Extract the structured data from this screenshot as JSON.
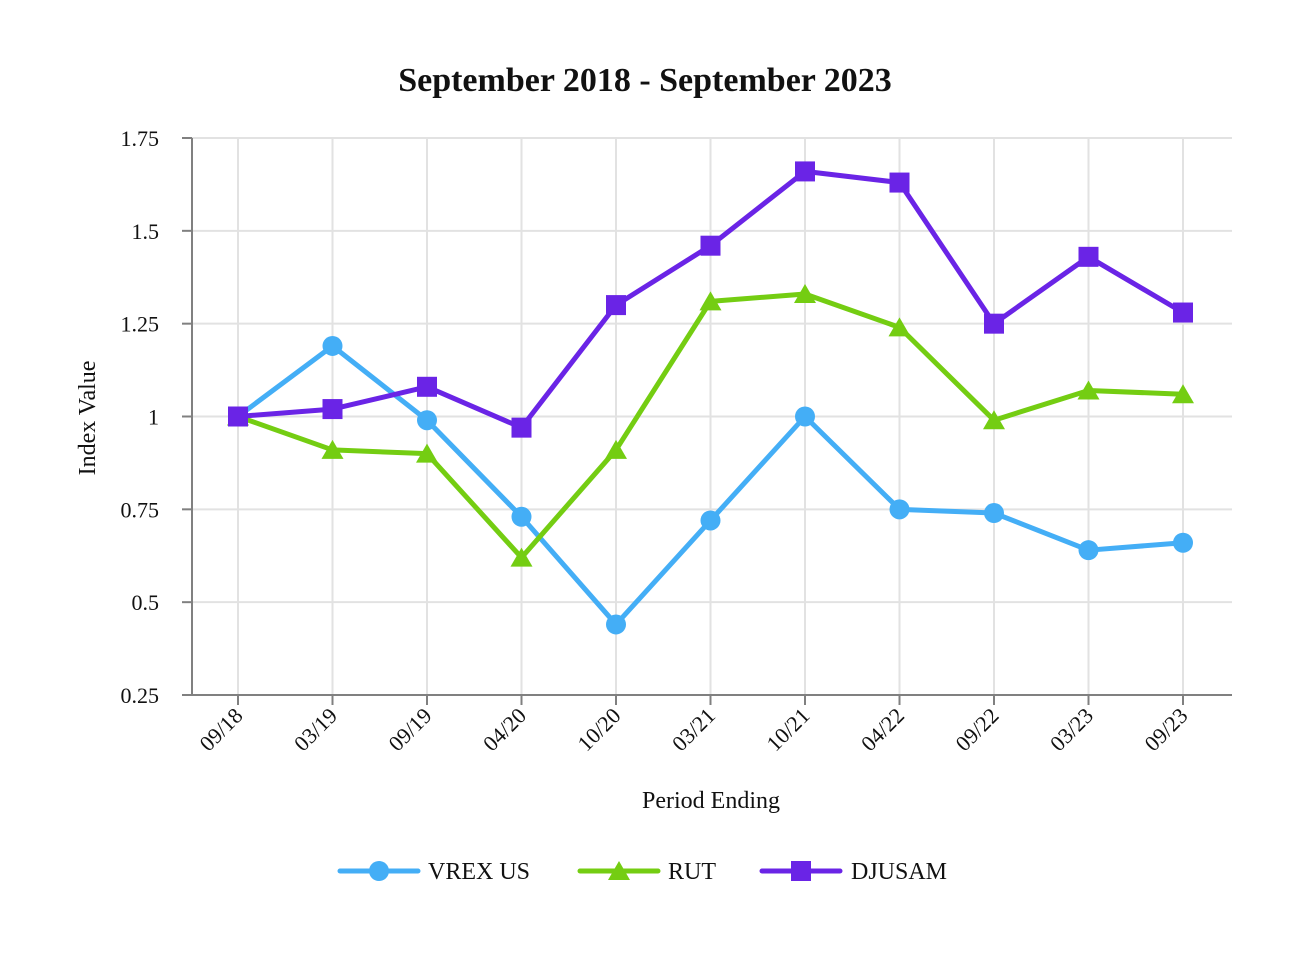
{
  "chart_data": {
    "type": "line",
    "title": "September 2018 - September 2023",
    "xlabel": "Period Ending",
    "ylabel": "Index Value",
    "categories": [
      "09/18",
      "03/19",
      "09/19",
      "04/20",
      "10/20",
      "03/21",
      "10/21",
      "04/22",
      "09/22",
      "03/23",
      "09/23"
    ],
    "y_ticks": [
      "1.75",
      "1.5",
      "1.25",
      "1",
      "0.75",
      "0.5",
      "0.25"
    ],
    "ylim": [
      0.25,
      1.75
    ],
    "grid": true,
    "legend_position": "bottom",
    "series": [
      {
        "name": "VREX US",
        "color": "#44aef6",
        "marker": "circle",
        "values": [
          1.0,
          1.19,
          0.99,
          0.73,
          0.44,
          0.72,
          1.0,
          0.75,
          0.74,
          0.64,
          0.66
        ]
      },
      {
        "name": "RUT",
        "color": "#74cd12",
        "marker": "triangle",
        "values": [
          1.0,
          0.91,
          0.9,
          0.62,
          0.91,
          1.31,
          1.33,
          1.24,
          0.99,
          1.07,
          1.06
        ]
      },
      {
        "name": "DJUSAM",
        "color": "#6a24e6",
        "marker": "square",
        "values": [
          1.0,
          1.02,
          1.08,
          0.97,
          1.3,
          1.46,
          1.66,
          1.63,
          1.25,
          1.43,
          1.28
        ]
      }
    ]
  }
}
